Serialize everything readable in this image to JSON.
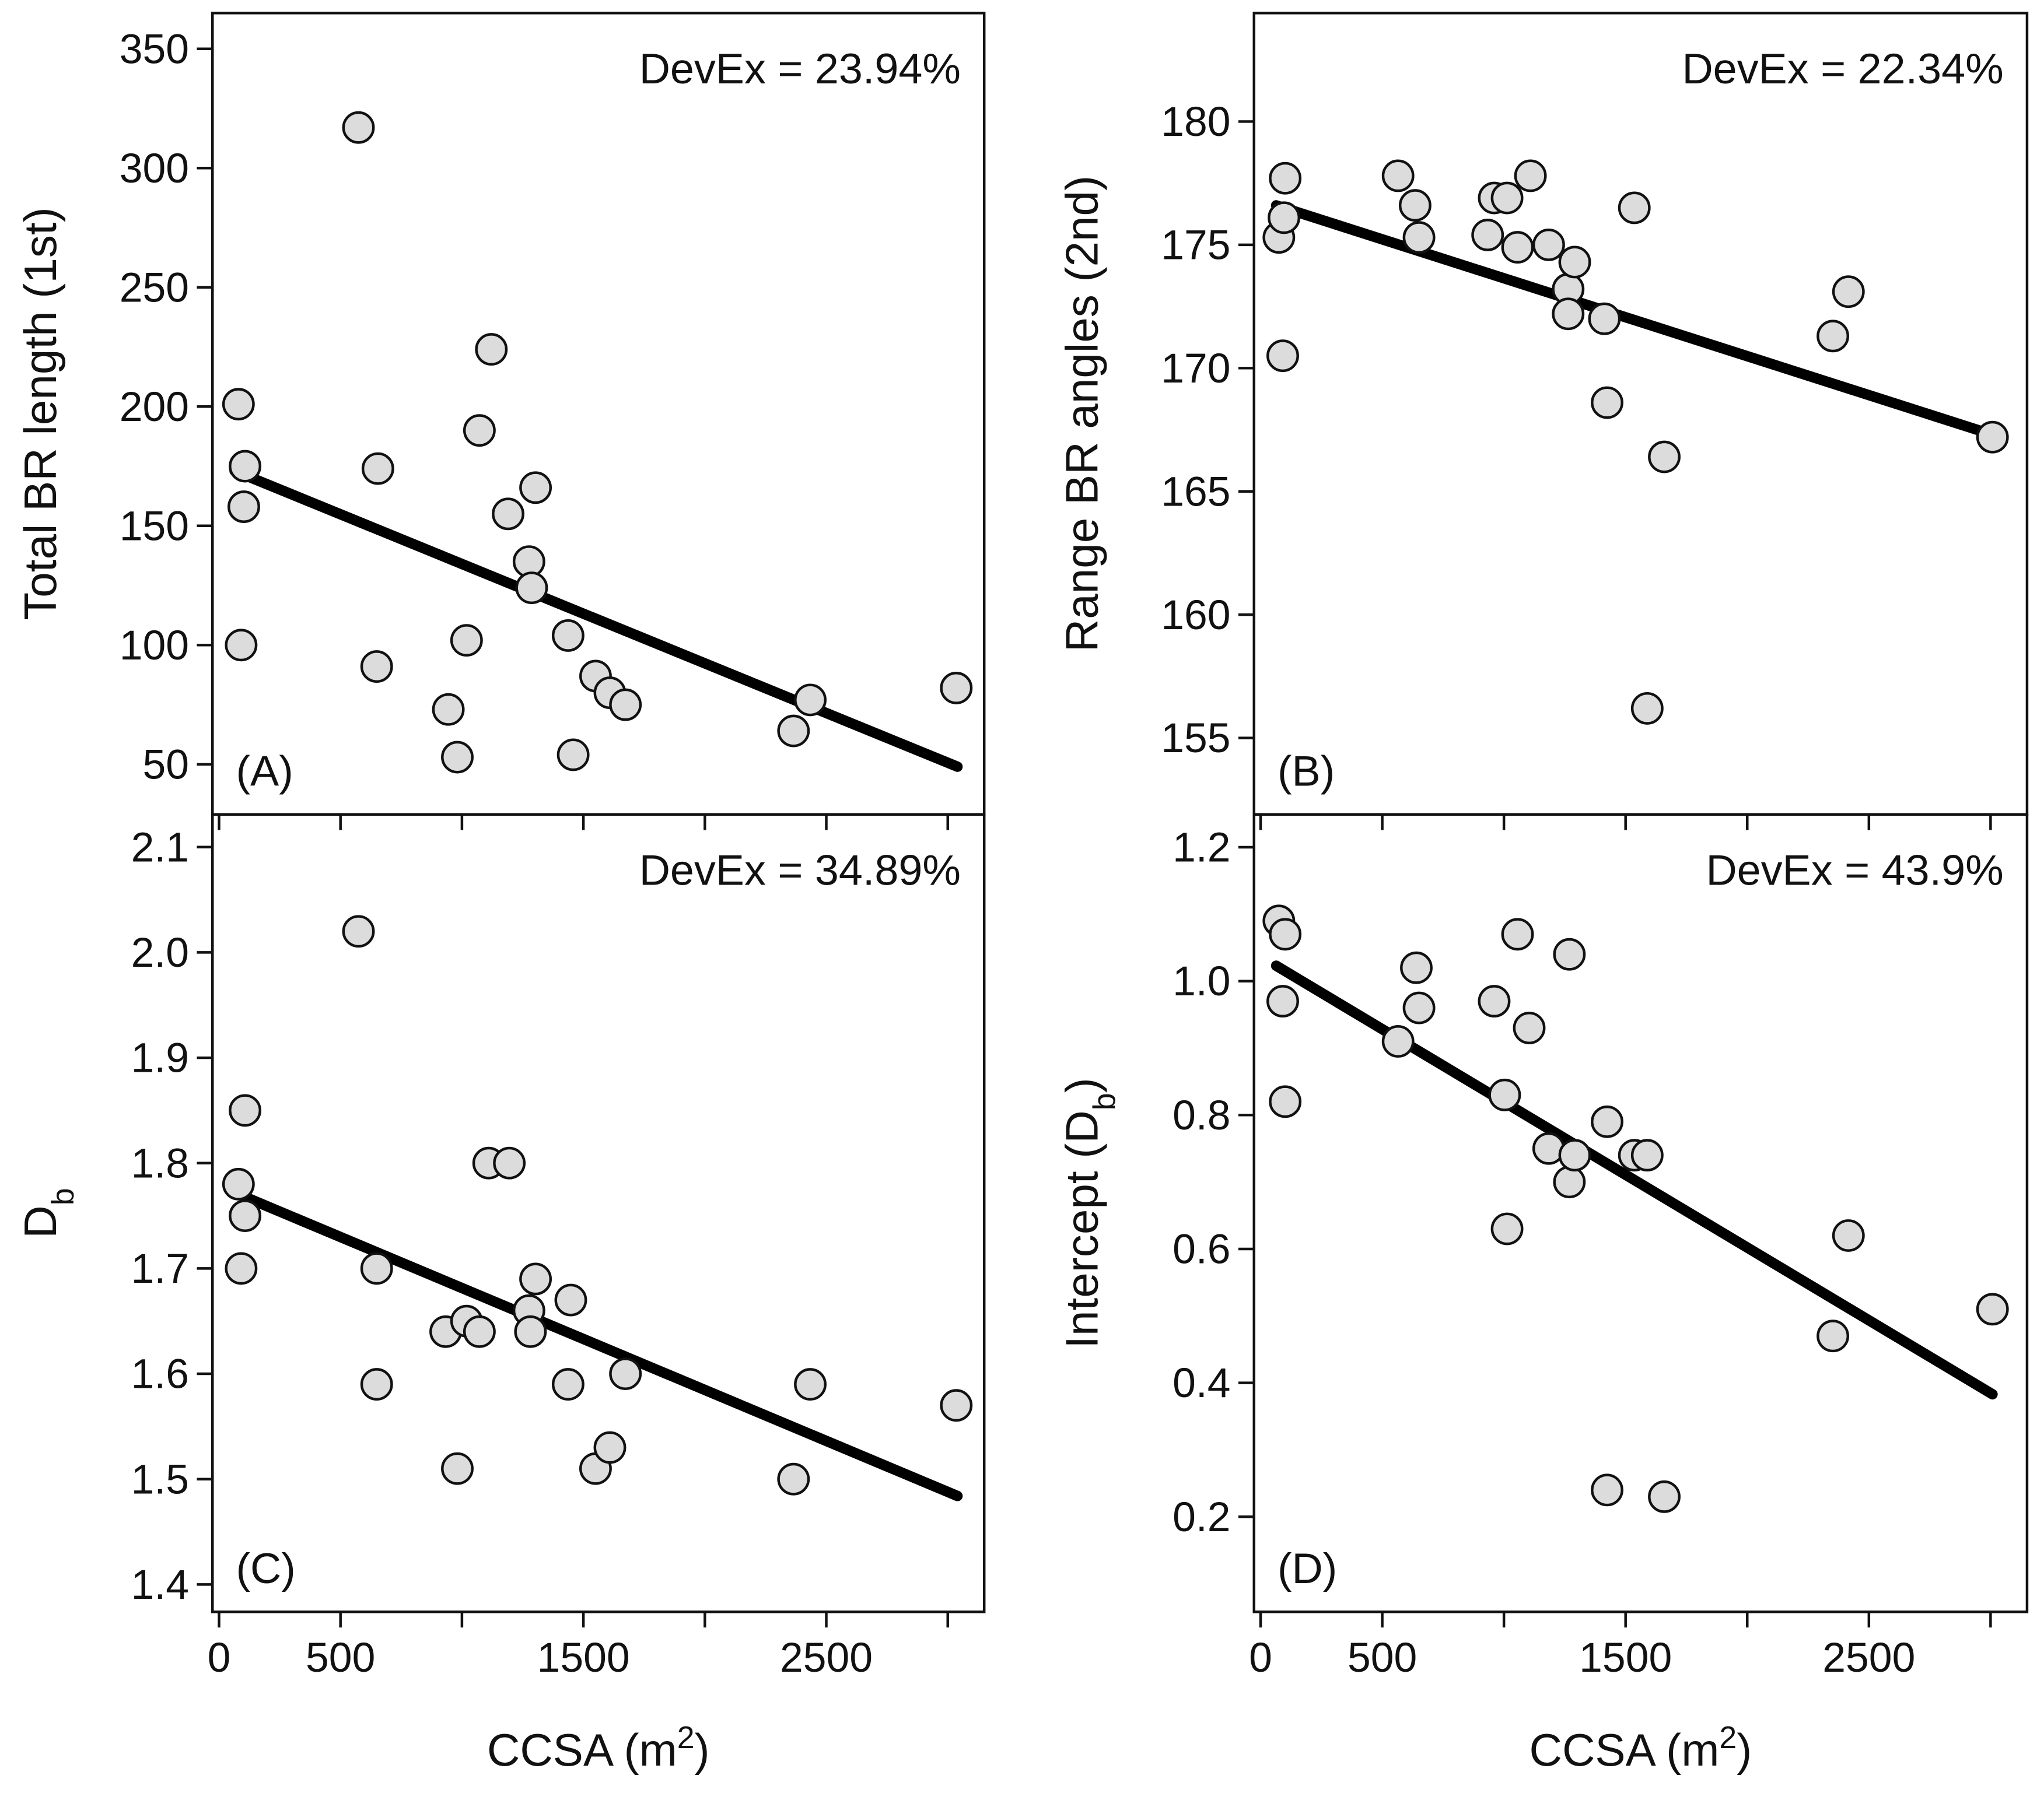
{
  "chart_data": [
    {
      "type": "scatter",
      "ylabel": "Total BR length (1st)",
      "annotation": "DevEx = 23.94%",
      "panel_label": "(A)",
      "x": [
        80,
        91,
        107,
        102,
        574,
        654,
        649,
        944,
        981,
        1019,
        1072,
        1121,
        1190,
        1276,
        1287,
        1303,
        1437,
        1458,
        1550,
        1609,
        1673,
        2365,
        2434,
        3035
      ],
      "values": [
        201,
        100,
        175,
        158,
        317,
        174,
        91,
        73,
        53,
        102,
        190,
        224,
        155,
        135,
        124,
        166,
        104,
        54,
        87,
        80,
        75,
        64,
        77,
        82
      ],
      "fit": {
        "x": [
          64,
          3040
        ],
        "y": [
          173,
          49
        ]
      },
      "xlim": [
        -27,
        3150
      ],
      "xticks": [
        0,
        500,
        1500,
        2500
      ],
      "xminor": [
        1000,
        2000,
        3000
      ],
      "xticklabels": false,
      "ylim": [
        29,
        365
      ],
      "yticks": [
        50,
        100,
        150,
        200,
        250,
        300,
        350
      ]
    },
    {
      "type": "scatter",
      "ylabel": "Range BR angles (2nd)",
      "annotation": "DevEx = 22.34%",
      "panel_label": "(B)",
      "x": [
        75,
        96,
        101,
        91,
        565,
        635,
        651,
        933,
        960,
        1013,
        1056,
        1109,
        1184,
        1264,
        1264,
        1291,
        1413,
        1424,
        1536,
        1589,
        1659,
        2352,
        2416,
        3008
      ],
      "values": [
        175.3,
        176.1,
        177.7,
        170.5,
        177.8,
        176.6,
        175.3,
        175.4,
        176.9,
        176.9,
        174.9,
        177.8,
        175.0,
        173.2,
        172.2,
        174.3,
        172.0,
        168.6,
        176.5,
        156.2,
        166.4,
        171.3,
        173.1,
        167.2
      ],
      "fit": {
        "x": [
          64,
          3008
        ],
        "y": [
          176.6,
          167.3
        ]
      },
      "xlim": [
        -27,
        3150
      ],
      "xticks": [
        0,
        500,
        1500,
        2500
      ],
      "xminor": [
        1000,
        2000,
        3000
      ],
      "xticklabels": false,
      "ylim": [
        151.9,
        184.4
      ],
      "yticks": [
        155,
        160,
        165,
        170,
        175,
        180
      ]
    },
    {
      "type": "scatter",
      "ylabel": [
        "D",
        "b"
      ],
      "ylabel_script": "sub",
      "annotation": "DevEx = 34.89%",
      "panel_label": "(C)",
      "xlabel": [
        "CCSA (m",
        "2",
        ")"
      ],
      "xlabel_script": "super",
      "x": [
        80,
        91,
        107,
        107,
        574,
        649,
        649,
        933,
        981,
        1019,
        1072,
        1110,
        1195,
        1276,
        1282,
        1303,
        1448,
        1437,
        1550,
        1609,
        1673,
        2365,
        2434,
        3035
      ],
      "values": [
        1.78,
        1.7,
        1.75,
        1.85,
        2.02,
        1.7,
        1.59,
        1.64,
        1.51,
        1.65,
        1.64,
        1.8,
        1.8,
        1.66,
        1.64,
        1.69,
        1.67,
        1.59,
        1.51,
        1.53,
        1.6,
        1.5,
        1.59,
        1.57
      ],
      "fit": {
        "x": [
          64,
          3040
        ],
        "y": [
          1.772,
          1.484
        ]
      },
      "xlim": [
        -27,
        3150
      ],
      "xticks": [
        0,
        500,
        1500,
        2500
      ],
      "xminor": [
        1000,
        2000,
        3000
      ],
      "xticklabels": true,
      "ylim": [
        1.374,
        2.131
      ],
      "yticks": [
        1.4,
        1.5,
        1.6,
        1.7,
        1.8,
        1.9,
        {
          "value": 2,
          "label": "2.0"
        },
        2.1
      ]
    },
    {
      "type": "scatter",
      "ylabel": [
        "Intercept (D",
        "b",
        ")"
      ],
      "ylabel_script": "sub",
      "annotation": "DevEx = 43.9%",
      "panel_label": "(D)",
      "xlabel": [
        "CCSA (m",
        "2",
        ")"
      ],
      "xlabel_script": "super",
      "x": [
        75,
        101,
        91,
        101,
        565,
        640,
        651,
        1003,
        960,
        1013,
        1056,
        1104,
        1184,
        1269,
        1269,
        1291,
        1424,
        1424,
        1536,
        1589,
        1659,
        2352,
        2416,
        3008
      ],
      "values": [
        1.09,
        1.07,
        0.97,
        0.82,
        0.91,
        1.02,
        0.96,
        0.83,
        0.97,
        0.63,
        1.07,
        0.93,
        0.75,
        1.04,
        0.7,
        0.74,
        0.79,
        0.24,
        0.74,
        0.74,
        0.23,
        0.47,
        0.62,
        0.51
      ],
      "fit": {
        "x": [
          64,
          3008
        ],
        "y": [
          1.023,
          0.383
        ]
      },
      "xlim": [
        -27,
        3150
      ],
      "xticks": [
        0,
        500,
        1500,
        2500
      ],
      "xminor": [
        1000,
        2000,
        3000
      ],
      "xticklabels": true,
      "ylim": [
        0.058,
        1.249
      ],
      "yticks": [
        0.2,
        0.4,
        0.6,
        0.8,
        {
          "value": 1,
          "label": "1.0"
        },
        1.2
      ]
    }
  ]
}
